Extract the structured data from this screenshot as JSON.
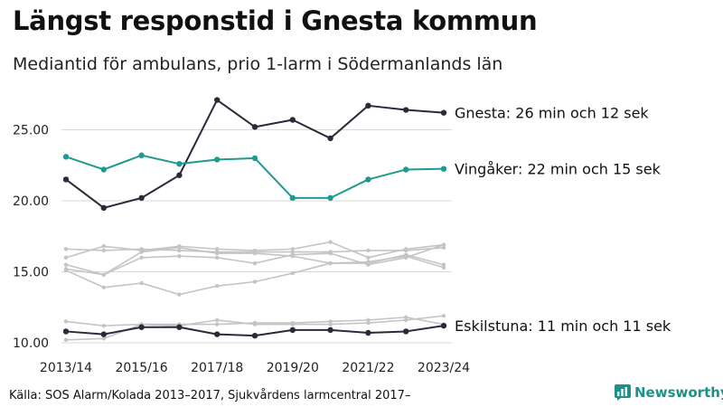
{
  "title": "Längst responstid i Gnesta kommun",
  "subtitle": "Mediantid för ambulans, prio 1-larm i Södermanlands län",
  "source": "Källa: SOS Alarm/Kolada 2013–2017, Sjukvårdens larmcentral 2017–",
  "brand": {
    "name": "Newsworthy",
    "icon": "newsworthy-logo-icon",
    "color": "#1f9088"
  },
  "colors": {
    "dark": "#2a2a3a",
    "teal": "#1f9a8f",
    "grey": "#c4c4c4"
  },
  "chart_data": {
    "type": "line",
    "x": [
      "2013/14",
      "2014/15",
      "2015/16",
      "2016/17",
      "2017/18",
      "2018/19",
      "2019/20",
      "2020/21",
      "2021/22",
      "2022/23",
      "2023/24"
    ],
    "x_tick_labels": [
      "2013/14",
      "2015/16",
      "2017/18",
      "2019/20",
      "2021/22",
      "2023/24"
    ],
    "y_ticks": [
      "10.00",
      "15.00",
      "20.00",
      "25.00"
    ],
    "ylim": [
      10,
      27.5
    ],
    "grid": true,
    "highlighted": [
      {
        "name": "Gnesta",
        "label": "Gnesta: 26 min och 12 sek",
        "color": "#2a2a3a",
        "values": [
          21.5,
          19.5,
          20.2,
          21.8,
          27.1,
          25.2,
          25.7,
          24.4,
          26.7,
          26.4,
          26.2
        ]
      },
      {
        "name": "Vingåker",
        "label": "Vingåker: 22 min och 15 sek",
        "color": "#1f9a8f",
        "values": [
          23.1,
          22.2,
          23.2,
          22.6,
          22.9,
          23.0,
          20.2,
          20.2,
          21.5,
          22.2,
          22.25
        ]
      },
      {
        "name": "Eskilstuna",
        "label": "Eskilstuna: 11 min och 11 sek",
        "color": "#2a2a3a",
        "values": [
          10.8,
          10.6,
          11.1,
          11.1,
          10.6,
          10.5,
          10.9,
          10.9,
          10.7,
          10.8,
          11.2
        ]
      }
    ],
    "other_series": [
      {
        "values": [
          16.6,
          16.5,
          16.6,
          16.5,
          16.4,
          16.4,
          16.4,
          16.4,
          16.5,
          16.5,
          16.7
        ]
      },
      {
        "values": [
          16.0,
          16.8,
          16.5,
          16.8,
          16.6,
          16.5,
          16.6,
          17.1,
          16.0,
          16.6,
          16.9
        ]
      },
      {
        "values": [
          15.5,
          14.8,
          16.0,
          16.1,
          16.0,
          15.6,
          16.2,
          16.3,
          15.5,
          16.0,
          16.9
        ]
      },
      {
        "values": [
          15.1,
          13.9,
          14.2,
          13.4,
          14.0,
          14.3,
          14.9,
          15.6,
          15.7,
          16.1,
          15.3
        ]
      },
      {
        "values": [
          15.2,
          14.8,
          16.4,
          16.7,
          16.3,
          16.3,
          16.1,
          15.6,
          15.6,
          16.2,
          15.5
        ]
      },
      {
        "values": [
          11.5,
          11.2,
          11.3,
          11.3,
          11.3,
          11.4,
          11.4,
          11.5,
          11.6,
          11.8,
          11.3
        ]
      },
      {
        "values": [
          10.2,
          10.3,
          11.3,
          11.2,
          11.6,
          11.3,
          11.3,
          11.3,
          11.4,
          11.6,
          11.9
        ]
      }
    ]
  }
}
